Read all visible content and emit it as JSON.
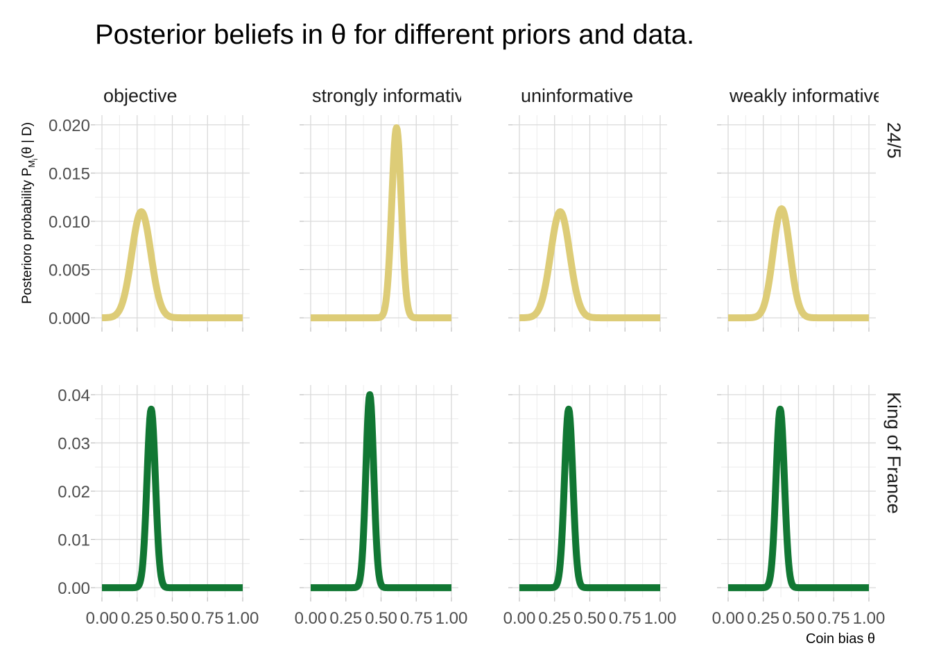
{
  "chart_data": {
    "type": "line",
    "title": "Posterior beliefs in θ for different priors and data.",
    "xlabel": "Coin bias θ",
    "ylabel": "Posterioro probability P_Mi(θ | D)",
    "column_facets": [
      "objective",
      "strongly informative",
      "uninformative",
      "weakly informative"
    ],
    "row_facets": [
      "24/5",
      "King of France"
    ],
    "x_ticks": [
      "0.00",
      "0.25",
      "0.50",
      "0.75",
      "1.00"
    ],
    "xlim": [
      0,
      1
    ],
    "rows": [
      {
        "name": "24/5",
        "color": "#DDCC77",
        "ylim": [
          0,
          0.02
        ],
        "y_ticks": [
          "0.000",
          "0.005",
          "0.010",
          "0.015",
          "0.020"
        ],
        "panels": [
          {
            "facet": "objective",
            "peak_x": 0.28,
            "peak_y": 0.011,
            "spread": 0.068
          },
          {
            "facet": "strongly informative",
            "peak_x": 0.61,
            "peak_y": 0.0197,
            "spread": 0.034
          },
          {
            "facet": "uninformative",
            "peak_x": 0.29,
            "peak_y": 0.011,
            "spread": 0.068
          },
          {
            "facet": "weakly informative",
            "peak_x": 0.38,
            "peak_y": 0.0113,
            "spread": 0.06
          }
        ]
      },
      {
        "name": "King of France",
        "color": "#117733",
        "ylim": [
          0,
          0.04
        ],
        "y_ticks": [
          "0.00",
          "0.01",
          "0.02",
          "0.03",
          "0.04"
        ],
        "panels": [
          {
            "facet": "objective",
            "peak_x": 0.35,
            "peak_y": 0.037,
            "spread": 0.03
          },
          {
            "facet": "strongly informative",
            "peak_x": 0.42,
            "peak_y": 0.04,
            "spread": 0.028
          },
          {
            "facet": "uninformative",
            "peak_x": 0.35,
            "peak_y": 0.037,
            "spread": 0.03
          },
          {
            "facet": "weakly informative",
            "peak_x": 0.37,
            "peak_y": 0.037,
            "spread": 0.03
          }
        ]
      }
    ]
  }
}
